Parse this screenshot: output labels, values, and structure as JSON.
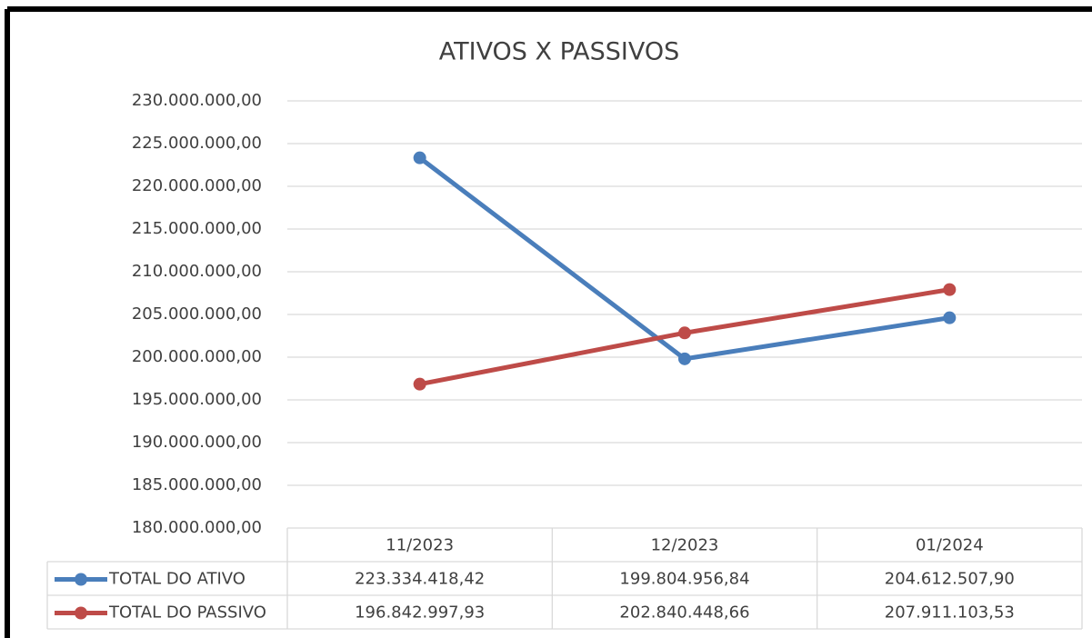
{
  "chart_data": {
    "type": "line",
    "title": "ATIVOS X PASSIVOS",
    "categories": [
      "11/2023",
      "12/2023",
      "01/2024"
    ],
    "series": [
      {
        "name": "TOTAL DO ATIVO",
        "color": "#4a7ebb",
        "values": [
          223334418.42,
          199804956.84,
          204612507.9
        ],
        "value_labels": [
          "223.334.418,42",
          "199.804.956,84",
          "204.612.507,90"
        ]
      },
      {
        "name": "TOTAL DO PASSIVO",
        "color": "#be4b48",
        "values": [
          196842997.93,
          202840448.66,
          207911103.53
        ],
        "value_labels": [
          "196.842.997,93",
          "202.840.448,66",
          "207.911.103,53"
        ]
      }
    ],
    "ylim": [
      180000000,
      230000000
    ],
    "yticks": [
      {
        "value": 180000000,
        "label": "180.000.000,00"
      },
      {
        "value": 185000000,
        "label": "185.000.000,00"
      },
      {
        "value": 190000000,
        "label": "190.000.000,00"
      },
      {
        "value": 195000000,
        "label": "195.000.000,00"
      },
      {
        "value": 200000000,
        "label": "200.000.000,00"
      },
      {
        "value": 205000000,
        "label": "205.000.000,00"
      },
      {
        "value": 210000000,
        "label": "210.000.000,00"
      },
      {
        "value": 215000000,
        "label": "215.000.000,00"
      },
      {
        "value": 220000000,
        "label": "220.000.000,00"
      },
      {
        "value": 225000000,
        "label": "225.000.000,00"
      },
      {
        "value": 230000000,
        "label": "230.000.000,00"
      }
    ],
    "grid": true
  }
}
